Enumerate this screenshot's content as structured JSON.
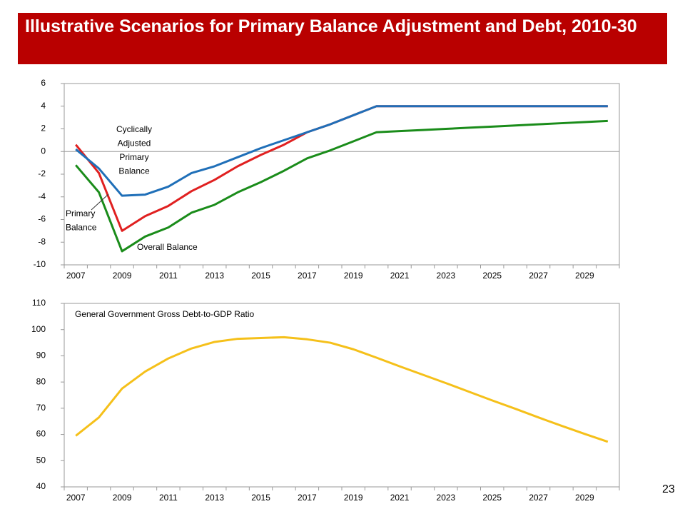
{
  "title": "Illustrative Scenarios for Primary Balance Adjustment and Debt, 2010-30",
  "page_number": "23",
  "chart_data": [
    {
      "type": "line",
      "categories": [
        "2007",
        null,
        "2009",
        null,
        "2011",
        null,
        "2013",
        null,
        "2015",
        null,
        "2017",
        null,
        "2019",
        null,
        "2021",
        null,
        "2023",
        null,
        "2025",
        null,
        "2027",
        null,
        "2029",
        null
      ],
      "ylim": [
        -10,
        6
      ],
      "yticks": [
        -10,
        -8,
        -6,
        -4,
        -2,
        0,
        2,
        4,
        6
      ],
      "series": [
        {
          "name": "Overall Balance",
          "color": "#1a8c1a",
          "values": [
            -1.2,
            -3.6,
            -8.8,
            -7.5,
            -6.7,
            -5.4,
            -4.7,
            -3.6,
            -2.7,
            -1.7,
            -0.6,
            0.1,
            0.9,
            1.7,
            1.8,
            1.9,
            2.0,
            2.1,
            2.2,
            2.3,
            2.4,
            2.5,
            2.6,
            2.7
          ]
        },
        {
          "name": "Primary Balance",
          "color": "#e02020",
          "values": [
            0.6,
            -1.9,
            -7.0,
            -5.7,
            -4.8,
            -3.5,
            -2.5,
            -1.3,
            -0.3,
            0.6,
            1.7,
            2.4,
            3.2,
            4.0,
            4.0,
            4.0,
            4.0,
            4.0,
            4.0,
            4.0,
            4.0,
            4.0,
            4.0,
            4.0
          ]
        },
        {
          "name": "Cyclically Adjusted Primary Balance",
          "color": "#1f6fb8",
          "values": [
            0.2,
            -1.5,
            -3.9,
            -3.8,
            -3.1,
            -1.9,
            -1.3,
            -0.5,
            0.3,
            1.0,
            1.7,
            2.4,
            3.2,
            4.0,
            4.0,
            4.0,
            4.0,
            4.0,
            4.0,
            4.0,
            4.0,
            4.0,
            4.0,
            4.0
          ]
        }
      ],
      "annotations": [
        {
          "lines": [
            "Cyclically",
            "Adjusted",
            "Primary",
            "Balance"
          ]
        },
        {
          "lines": [
            "Primary",
            "Balance"
          ]
        },
        {
          "lines": [
            "Overall Balance"
          ]
        }
      ]
    },
    {
      "type": "line",
      "categories": [
        "2007",
        null,
        "2009",
        null,
        "2011",
        null,
        "2013",
        null,
        "2015",
        null,
        "2017",
        null,
        "2019",
        null,
        "2021",
        null,
        "2023",
        null,
        "2025",
        null,
        "2027",
        null,
        "2029",
        null
      ],
      "ylim": [
        40,
        110
      ],
      "yticks": [
        40,
        50,
        60,
        70,
        80,
        90,
        100,
        110
      ],
      "series": [
        {
          "name": "General Government Gross Debt-to-GDP Ratio",
          "color": "#f5c01a",
          "values": [
            59.5,
            66.5,
            77.5,
            84,
            89,
            92.8,
            95.3,
            96.5,
            96.8,
            97.1,
            96.3,
            95.0,
            92.5,
            89.3,
            86,
            82.8,
            79.6,
            76.3,
            73.0,
            69.8,
            66.5,
            63.3,
            60.2,
            57.2
          ]
        }
      ],
      "annotations": []
    }
  ]
}
